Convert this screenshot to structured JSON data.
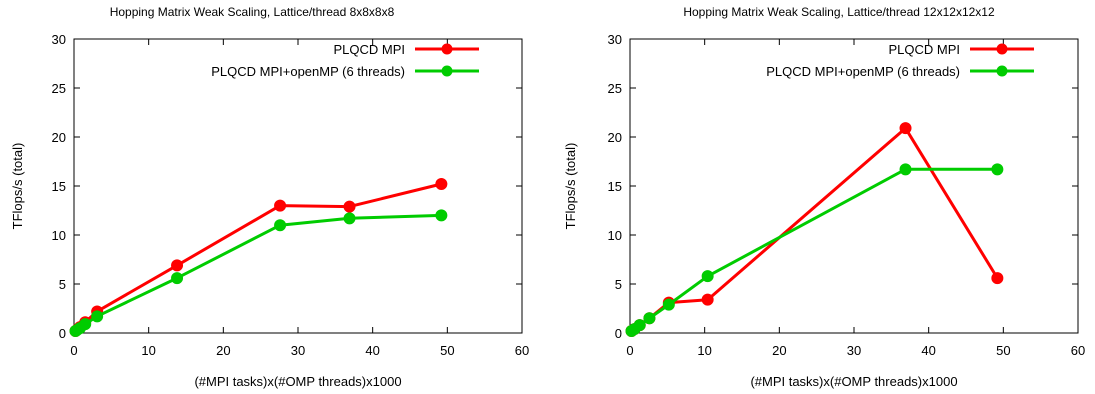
{
  "chart_data": [
    {
      "type": "line",
      "title": "Hopping Matrix Weak Scaling, Lattice/thread 8x8x8x8",
      "xlabel": "(#MPI tasks)x(#OMP threads)x1000",
      "ylabel": "TFlops/s (total)",
      "xlim": [
        0,
        60
      ],
      "ylim": [
        0,
        30
      ],
      "xticks": [
        "0",
        "10",
        "20",
        "30",
        "40",
        "50",
        "60"
      ],
      "yticks": [
        "0",
        "5",
        "10",
        "15",
        "20",
        "25",
        "30"
      ],
      "grid": false,
      "legend_position": "top-right",
      "series": [
        {
          "name": "PLQCD MPI",
          "color": "#ff0000",
          "x": [
            0.2,
            0.5,
            0.8,
            1.5,
            3.1,
            13.8,
            27.6,
            36.9,
            49.2
          ],
          "y": [
            0.2,
            0.4,
            0.6,
            1.1,
            2.2,
            6.9,
            13.0,
            12.9,
            15.2
          ]
        },
        {
          "name": "PLQCD MPI+openMP (6 threads)",
          "color": "#00cc00",
          "x": [
            0.2,
            0.4,
            0.8,
            1.5,
            3.1,
            13.8,
            27.6,
            36.9,
            49.2
          ],
          "y": [
            0.2,
            0.3,
            0.5,
            0.9,
            1.7,
            5.6,
            11.0,
            11.7,
            12.0
          ]
        }
      ]
    },
    {
      "type": "line",
      "title": "Hopping Matrix Weak Scaling, Lattice/thread 12x12x12x12",
      "xlabel": "(#MPI tasks)x(#OMP threads)x1000",
      "ylabel": "TFlops/s (total)",
      "xlim": [
        0,
        60
      ],
      "ylim": [
        0,
        30
      ],
      "xticks": [
        "0",
        "10",
        "20",
        "30",
        "40",
        "50",
        "60"
      ],
      "yticks": [
        "0",
        "5",
        "10",
        "15",
        "20",
        "25",
        "30"
      ],
      "grid": false,
      "legend_position": "top-right",
      "series": [
        {
          "name": "PLQCD MPI",
          "color": "#ff0000",
          "x": [
            0.2,
            0.6,
            1.3,
            2.6,
            5.2,
            10.4,
            36.9,
            49.2
          ],
          "y": [
            0.2,
            0.4,
            0.8,
            1.5,
            3.1,
            3.4,
            20.9,
            5.6
          ]
        },
        {
          "name": "PLQCD MPI+openMP (6 threads)",
          "color": "#00cc00",
          "x": [
            0.2,
            0.6,
            1.3,
            2.6,
            5.2,
            10.4,
            36.9,
            49.2
          ],
          "y": [
            0.2,
            0.4,
            0.8,
            1.5,
            2.9,
            5.8,
            16.7,
            16.7
          ]
        }
      ]
    }
  ]
}
